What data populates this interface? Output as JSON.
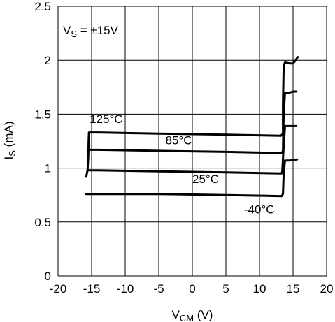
{
  "chart_data": {
    "type": "line",
    "annotation_main": "V",
    "annotation_sub": "S",
    "annotation_rest": " = ±15V",
    "xlabel_main": "V",
    "xlabel_sub": "CM",
    "xlabel_rest": " (V)",
    "ylabel_main": "I",
    "ylabel_sub": "S",
    "ylabel_rest": " (mA)",
    "xlim": [
      -20,
      20
    ],
    "ylim": [
      0,
      2.5
    ],
    "x_ticks": [
      "-20",
      "-15",
      "-10",
      "-5",
      "0",
      "5",
      "10",
      "15",
      "20"
    ],
    "y_ticks": [
      "0",
      "0.5",
      "1",
      "1.5",
      "2",
      "2.5"
    ],
    "grid": true,
    "series": [
      {
        "name": "125°C",
        "x": [
          -15.8,
          -15.6,
          -15.5,
          -15.45,
          -15.4,
          -14,
          -5,
          5,
          13.2,
          13.5,
          13.5,
          13.6,
          13.8,
          14.5,
          15.0,
          15.4,
          15.7
        ],
        "y": [
          0.92,
          0.98,
          1.1,
          1.25,
          1.33,
          1.33,
          1.32,
          1.31,
          1.3,
          1.32,
          1.6,
          1.95,
          1.98,
          1.97,
          1.97,
          2.0,
          2.03
        ]
      },
      {
        "name": "85°C",
        "x": [
          -15.4,
          -14,
          -5,
          5,
          13.3,
          13.5,
          13.6,
          13.8,
          14.5,
          15.0,
          15.5
        ],
        "y": [
          1.17,
          1.17,
          1.16,
          1.15,
          1.14,
          1.16,
          1.5,
          1.7,
          1.7,
          1.71,
          1.71
        ]
      },
      {
        "name": "25°C",
        "x": [
          -15.6,
          -14,
          -5,
          5,
          13.3,
          13.4,
          13.6,
          13.8,
          14.5,
          15.5
        ],
        "y": [
          0.98,
          0.98,
          0.97,
          0.96,
          0.95,
          0.97,
          1.2,
          1.39,
          1.39,
          1.39
        ]
      },
      {
        "name": "-40°C",
        "x": [
          -15.8,
          -14,
          -5,
          5,
          13.3,
          13.5,
          13.6,
          13.8,
          14.5,
          15.6
        ],
        "y": [
          0.76,
          0.76,
          0.76,
          0.75,
          0.74,
          0.76,
          0.95,
          1.07,
          1.07,
          1.08
        ]
      }
    ],
    "curve_labels": [
      {
        "text": "125°C",
        "x": -15.3,
        "y": 1.42
      },
      {
        "text": "85°C",
        "x": -4.0,
        "y": 1.22
      },
      {
        "text": "25°C",
        "x": 0.0,
        "y": 0.86
      },
      {
        "text": "-40°C",
        "x": 7.7,
        "y": 0.58
      }
    ]
  }
}
